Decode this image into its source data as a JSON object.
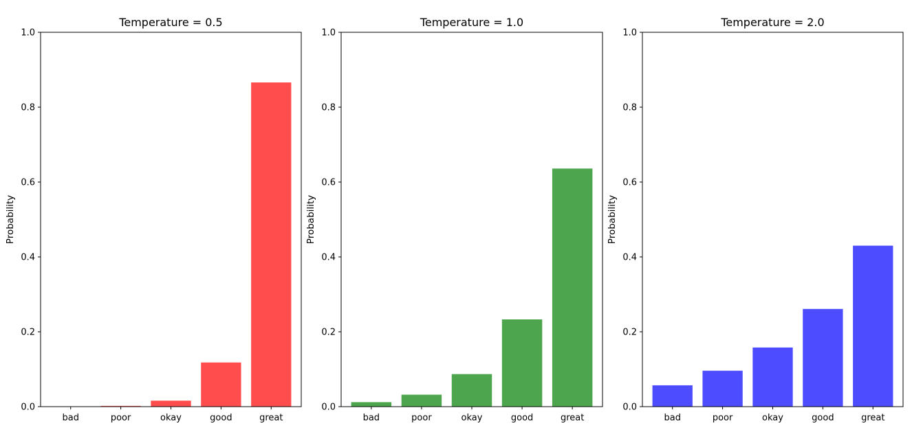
{
  "chart_data": [
    {
      "type": "bar",
      "title": "Temperature = 0.5",
      "ylabel": "Probability",
      "xlabel": "",
      "categories": [
        "bad",
        "poor",
        "okay",
        "good",
        "great"
      ],
      "values": [
        0.0,
        0.002,
        0.016,
        0.118,
        0.866
      ],
      "ylim": [
        0,
        1.0
      ],
      "yticks": [
        "0.0",
        "0.2",
        "0.4",
        "0.6",
        "0.8",
        "1.0"
      ],
      "grid": false,
      "color": "#ff4d4d"
    },
    {
      "type": "bar",
      "title": "Temperature = 1.0",
      "ylabel": "Probability",
      "xlabel": "",
      "categories": [
        "bad",
        "poor",
        "okay",
        "good",
        "great"
      ],
      "values": [
        0.012,
        0.032,
        0.087,
        0.233,
        0.636
      ],
      "ylim": [
        0,
        1.0
      ],
      "yticks": [
        "0.0",
        "0.2",
        "0.4",
        "0.6",
        "0.8",
        "1.0"
      ],
      "grid": false,
      "color": "#4da64d"
    },
    {
      "type": "bar",
      "title": "Temperature = 2.0",
      "ylabel": "Probability",
      "xlabel": "",
      "categories": [
        "bad",
        "poor",
        "okay",
        "good",
        "great"
      ],
      "values": [
        0.057,
        0.096,
        0.158,
        0.261,
        0.43
      ],
      "ylim": [
        0,
        1.0
      ],
      "yticks": [
        "0.0",
        "0.2",
        "0.4",
        "0.6",
        "0.8",
        "1.0"
      ],
      "grid": false,
      "color": "#4d4dff"
    }
  ]
}
